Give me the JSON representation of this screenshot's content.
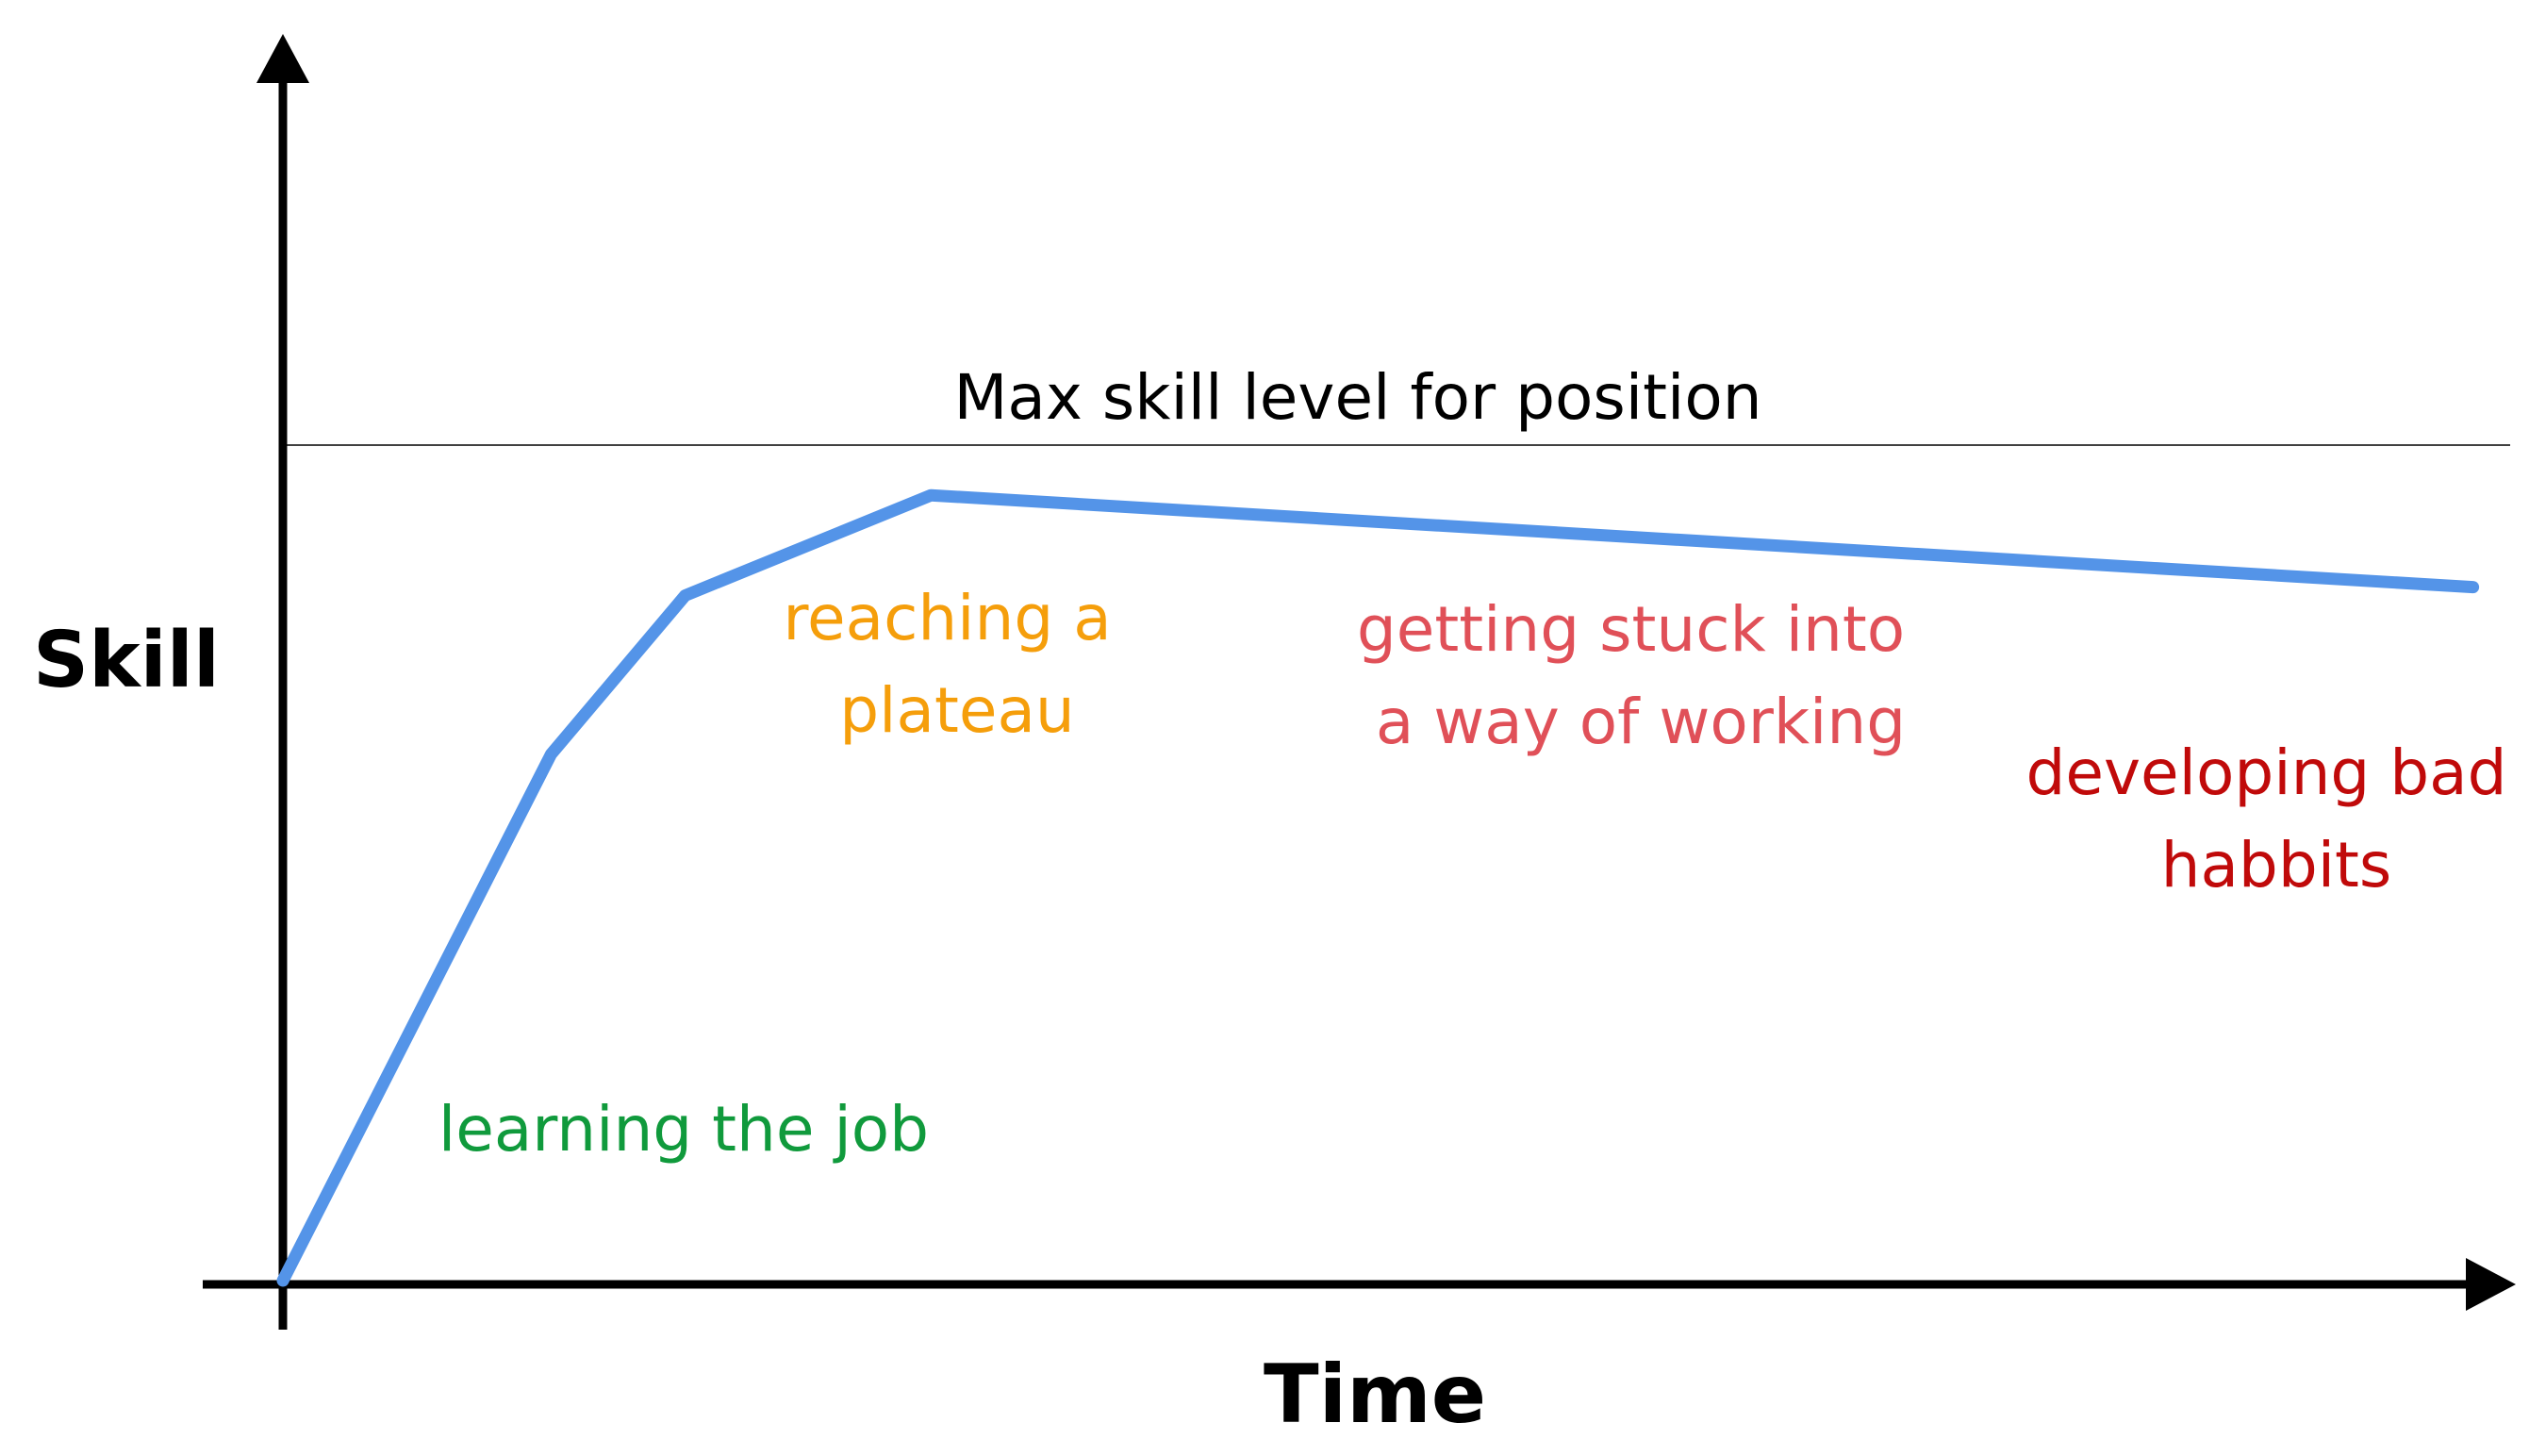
{
  "chart_data": {
    "type": "line",
    "title": "",
    "xlabel": "Time",
    "ylabel": "Skill",
    "grid": false,
    "legend": "none",
    "xlim": [
      0,
      100
    ],
    "ylim": [
      0,
      100
    ],
    "x": [
      0,
      12,
      18,
      29,
      98
    ],
    "series": [
      {
        "values": [
          0,
          63,
          82,
          94,
          83
        ]
      }
    ],
    "reference_line": {
      "label": "Max skill level for position",
      "value": 100
    },
    "annotations": [
      {
        "lines": [
          "learning the job"
        ],
        "color": "#109a3c"
      },
      {
        "lines": [
          "reaching a",
          "plateau"
        ],
        "color": "#f59e0b"
      },
      {
        "lines": [
          "getting stuck into",
          "a way of working"
        ],
        "color": "#e05058"
      },
      {
        "lines": [
          "developing bad",
          "habbits"
        ],
        "color": "#c00a0a"
      }
    ],
    "colors": {
      "curve": "#5494e8",
      "axis": "#000000",
      "reference": "#000000"
    }
  }
}
